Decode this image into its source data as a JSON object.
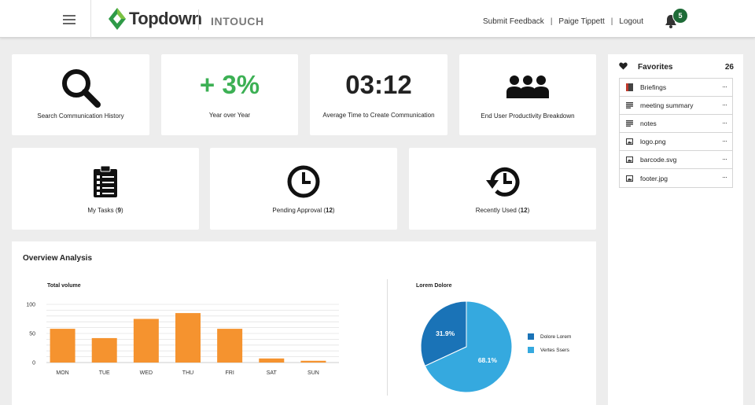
{
  "header": {
    "brand": "Topdown",
    "product": "INTOUCH",
    "nav": [
      "Submit Feedback",
      "Paige Tippett",
      "Logout"
    ],
    "notification_count": "5",
    "colors": {
      "brand_green": "#2e9a47",
      "badge": "#1e6b37"
    }
  },
  "cards_row1": [
    {
      "icon": "search-icon",
      "label": "Search Communication History"
    },
    {
      "stat": "+ 3%",
      "label": "Year over Year",
      "stat_color": "#3cb054"
    },
    {
      "stat": "03:12",
      "label": "Average Time to Create Communication"
    },
    {
      "icon": "users-icon",
      "label": "End User Productivity Breakdown"
    }
  ],
  "cards_row2": [
    {
      "icon": "clipboard-icon",
      "label": "My Tasks",
      "count": "9"
    },
    {
      "icon": "clock-icon",
      "label": "Pending Approval",
      "count": "12"
    },
    {
      "icon": "history-icon",
      "label": "Recently Used",
      "count": "12"
    }
  ],
  "overview": {
    "title": "Overview Analysis"
  },
  "chart_data": [
    {
      "type": "bar",
      "title": "Total volume",
      "categories": [
        "MON",
        "TUE",
        "WED",
        "THU",
        "FRI",
        "SAT",
        "SUN"
      ],
      "values": [
        58,
        42,
        75,
        85,
        58,
        7,
        3
      ],
      "yticks": [
        0,
        50,
        100
      ],
      "ylim": [
        0,
        100
      ],
      "color": "#f5932f"
    },
    {
      "type": "pie",
      "title": "Lorem Dolore",
      "slices": [
        {
          "name": "Dolore Lorem",
          "value": 31.9,
          "label": "31.9%",
          "color": "#1a73b7"
        },
        {
          "name": "Vertes Ssers",
          "value": 68.1,
          "label": "68.1%",
          "color": "#35a9df"
        }
      ],
      "legend": "right"
    }
  ],
  "favorites": {
    "title": "Favorites",
    "count": "26",
    "items": [
      {
        "name": "Briefings",
        "icon": "briefing-icon"
      },
      {
        "name": "meeting summary",
        "icon": "document-icon"
      },
      {
        "name": "notes",
        "icon": "document-icon"
      },
      {
        "name": "logo.png",
        "icon": "image-icon"
      },
      {
        "name": "barcode.svg",
        "icon": "image-icon"
      },
      {
        "name": "footer.jpg",
        "icon": "image-icon"
      }
    ],
    "more_label": "···"
  }
}
